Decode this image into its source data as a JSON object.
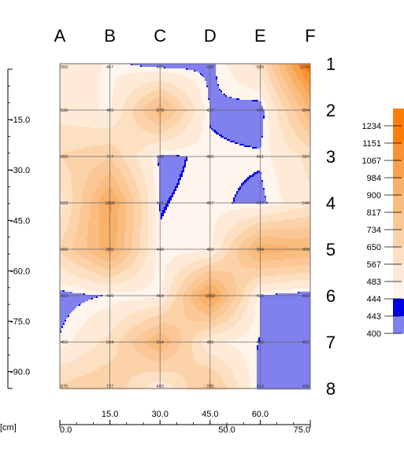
{
  "chart_data": {
    "type": "heatmap",
    "title": "",
    "column_labels": [
      "A",
      "B",
      "C",
      "D",
      "E",
      "F"
    ],
    "row_labels": [
      "1",
      "2",
      "3",
      "4",
      "5",
      "6",
      "7",
      "8"
    ],
    "x_axis": {
      "unit": "[cm]",
      "range": [
        0,
        75
      ],
      "ticks_top_row": [
        "15.0",
        "30.0",
        "45.0",
        "60.0"
      ],
      "ticks_bottom_row": [
        "0.0",
        "50.0",
        "75.0"
      ]
    },
    "y_axis": {
      "range": [
        0,
        -95
      ],
      "ticks": [
        "-15.0",
        "-30.0",
        "-45.0",
        "-60.0",
        "-75.0",
        "-90.0"
      ]
    },
    "grid": true,
    "values": [
      [
        550,
        467,
        405,
        426,
        599,
        1234
      ],
      [
        530,
        469,
        878,
        437,
        405,
        894
      ],
      [
        655,
        717,
        430,
        455,
        451,
        597
      ],
      [
        523,
        1005,
        441,
        457,
        427,
        549
      ],
      [
        660,
        965,
        448,
        466,
        954,
        898
      ],
      [
        413,
        449,
        464,
        1050,
        439,
        400
      ],
      [
        450,
        594,
        914,
        495,
        442,
        401
      ],
      [
        675,
        727,
        493,
        785,
        413,
        400
      ]
    ],
    "legend": {
      "position": "right",
      "levels": [
        "1234",
        "1151",
        "1067",
        "984",
        "900",
        "817",
        "734",
        "650",
        "567",
        "483",
        "444",
        "443",
        "400"
      ],
      "colors": [
        "#fd7d0a",
        "#f99233",
        "#f7a24d",
        "#f8b16a",
        "#f9bd80",
        "#fbc796",
        "#fcd3a9",
        "#fde0c2",
        "#feead7",
        "#fff5ec",
        "#0000e6",
        "#8080ef"
      ]
    }
  }
}
